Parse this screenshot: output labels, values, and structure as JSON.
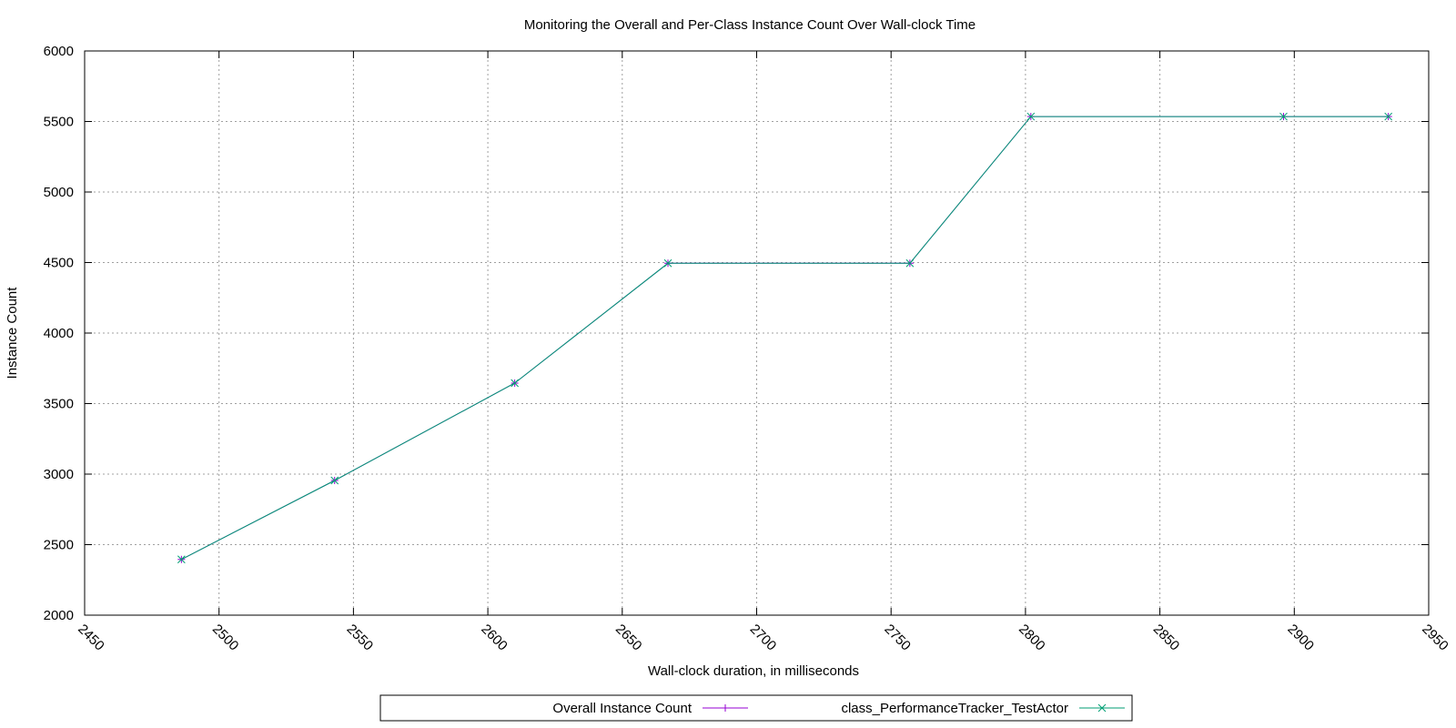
{
  "chart_data": {
    "type": "line",
    "title": "Monitoring the Overall and Per-Class Instance Count Over Wall-clock Time",
    "xlabel": "Wall-clock duration, in milliseconds",
    "ylabel": "Instance Count",
    "xlim": [
      2450,
      2950
    ],
    "ylim": [
      2000,
      6000
    ],
    "xticks": [
      2450,
      2500,
      2550,
      2600,
      2650,
      2700,
      2750,
      2800,
      2850,
      2900,
      2950
    ],
    "yticks": [
      2000,
      2500,
      3000,
      3500,
      4000,
      4500,
      5000,
      5500,
      6000
    ],
    "grid": true,
    "legend_position": "bottom-center",
    "series": [
      {
        "name": "Overall Instance Count",
        "color": "#9400d3",
        "marker": "plus",
        "x": [
          2486,
          2543,
          2610,
          2667,
          2757,
          2802,
          2896,
          2935
        ],
        "y": [
          2395,
          2955,
          3645,
          4495,
          4495,
          5535,
          5535,
          5535
        ]
      },
      {
        "name": "class_PerformanceTracker_TestActor",
        "color": "#009e73",
        "marker": "x",
        "x": [
          2486,
          2543,
          2610,
          2667,
          2757,
          2802,
          2896,
          2935
        ],
        "y": [
          2395,
          2955,
          3645,
          4495,
          4495,
          5535,
          5535,
          5535
        ]
      }
    ]
  }
}
